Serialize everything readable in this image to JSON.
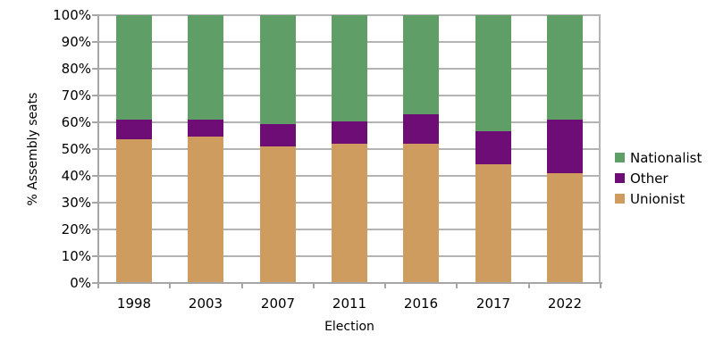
{
  "chart_data": {
    "type": "bar",
    "stacked": true,
    "title": "",
    "xlabel": "Election",
    "ylabel": "% Assembly seats",
    "ylim": [
      0,
      100
    ],
    "ytick_step": 10,
    "ytick_suffix": "%",
    "grid": true,
    "legend_position": "right",
    "categories": [
      "1998",
      "2003",
      "2007",
      "2011",
      "2016",
      "2017",
      "2022"
    ],
    "series": [
      {
        "name": "Unionist",
        "color": "#cd9c5e",
        "values": [
          53.7,
          54.6,
          50.9,
          51.9,
          51.9,
          44.4,
          41.1
        ]
      },
      {
        "name": "Other",
        "color": "#6e0d76",
        "values": [
          7.4,
          6.5,
          8.3,
          8.3,
          11.1,
          12.2,
          20.0
        ]
      },
      {
        "name": "Nationalist",
        "color": "#609e68",
        "values": [
          38.9,
          38.9,
          40.8,
          39.8,
          37.0,
          43.4,
          38.9
        ]
      }
    ],
    "legend_order": [
      "Nationalist",
      "Other",
      "Unionist"
    ]
  },
  "colors": {
    "background": "#ffffff",
    "gridline": "#b3b3b3",
    "axis": "#a6a6a6",
    "text": "#000000"
  }
}
